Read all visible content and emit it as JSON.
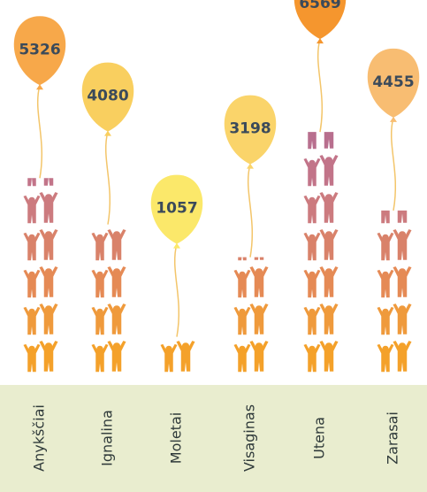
{
  "chart_data": {
    "type": "balloon",
    "categories": [
      "Anykščiai",
      "Ignalina",
      "Moletai",
      "Visaginas",
      "Utena",
      "Zarasai"
    ],
    "values": [
      5326,
      4080,
      1057,
      3198,
      6569,
      4455
    ],
    "colors": [
      "#f7a84a",
      "#f9cf5f",
      "#fbe86a",
      "#fad46a",
      "#f5962e",
      "#f8bd72"
    ]
  }
}
